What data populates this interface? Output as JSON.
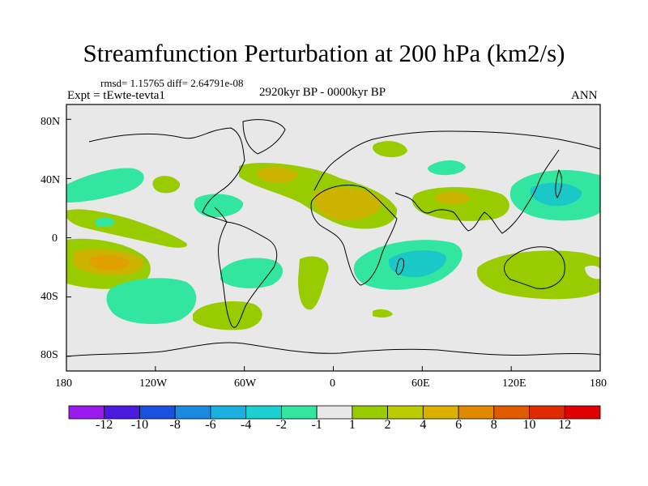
{
  "header": {
    "title": "Streamfunction Perturbation at 200 hPa (km2/s)",
    "stats": "rmsd= 1.15765 diff= 2.64791e-08",
    "experiment": "Expt = tEwte-tevta1",
    "period": "2920kyr BP - 0000kyr BP",
    "season": "ANN"
  },
  "map": {
    "lon_ticks": [
      "180",
      "120W",
      "60W",
      "0",
      "60E",
      "120E",
      "180"
    ],
    "lat_ticks": [
      "80N",
      "40N",
      "0",
      "40S",
      "80S"
    ],
    "background_color": "#e8e8e8",
    "fill_regions": [
      {
        "level": "2",
        "lon": -165,
        "lat": 20,
        "color": "#99cc00"
      },
      {
        "level": "4",
        "lon": -160,
        "lat": -12,
        "color": "#ccb300"
      },
      {
        "level": "6",
        "lon": -155,
        "lat": -15,
        "color": "#e0a000"
      },
      {
        "level": "-2",
        "lon": -123,
        "lat": -42,
        "color": "#33e6a0"
      },
      {
        "level": "-2",
        "lon": -153,
        "lat": 30,
        "color": "#33e6a0"
      },
      {
        "level": "2",
        "lon": -28,
        "lat": 42,
        "color": "#99cc00"
      },
      {
        "level": "4",
        "lon": 10,
        "lat": 22,
        "color": "#ccb300"
      },
      {
        "level": "2",
        "lon": 80,
        "lat": 25,
        "color": "#99cc00"
      },
      {
        "level": "-4",
        "lon": 150,
        "lat": 28,
        "color": "#1ac8c8"
      },
      {
        "level": "-4",
        "lon": 55,
        "lat": -20,
        "color": "#1ac8c8"
      },
      {
        "level": "2",
        "lon": 135,
        "lat": -30,
        "color": "#99cc00"
      },
      {
        "level": "2",
        "lon": -80,
        "lat": -48,
        "color": "#99cc00"
      }
    ]
  },
  "colorbar": {
    "labels": [
      "-12",
      "-10",
      "-8",
      "-6",
      "-4",
      "-2",
      "-1",
      "1",
      "2",
      "4",
      "6",
      "8",
      "10",
      "12"
    ],
    "colors": [
      "#9a1af0",
      "#4a1ae0",
      "#1a50e0",
      "#1a8ae0",
      "#1ab0e0",
      "#1ad0d0",
      "#33e6a0",
      "#e8e8e8",
      "#99cc00",
      "#bbcc00",
      "#ddb000",
      "#e08a00",
      "#e05a00",
      "#e02a00",
      "#e00000"
    ]
  }
}
